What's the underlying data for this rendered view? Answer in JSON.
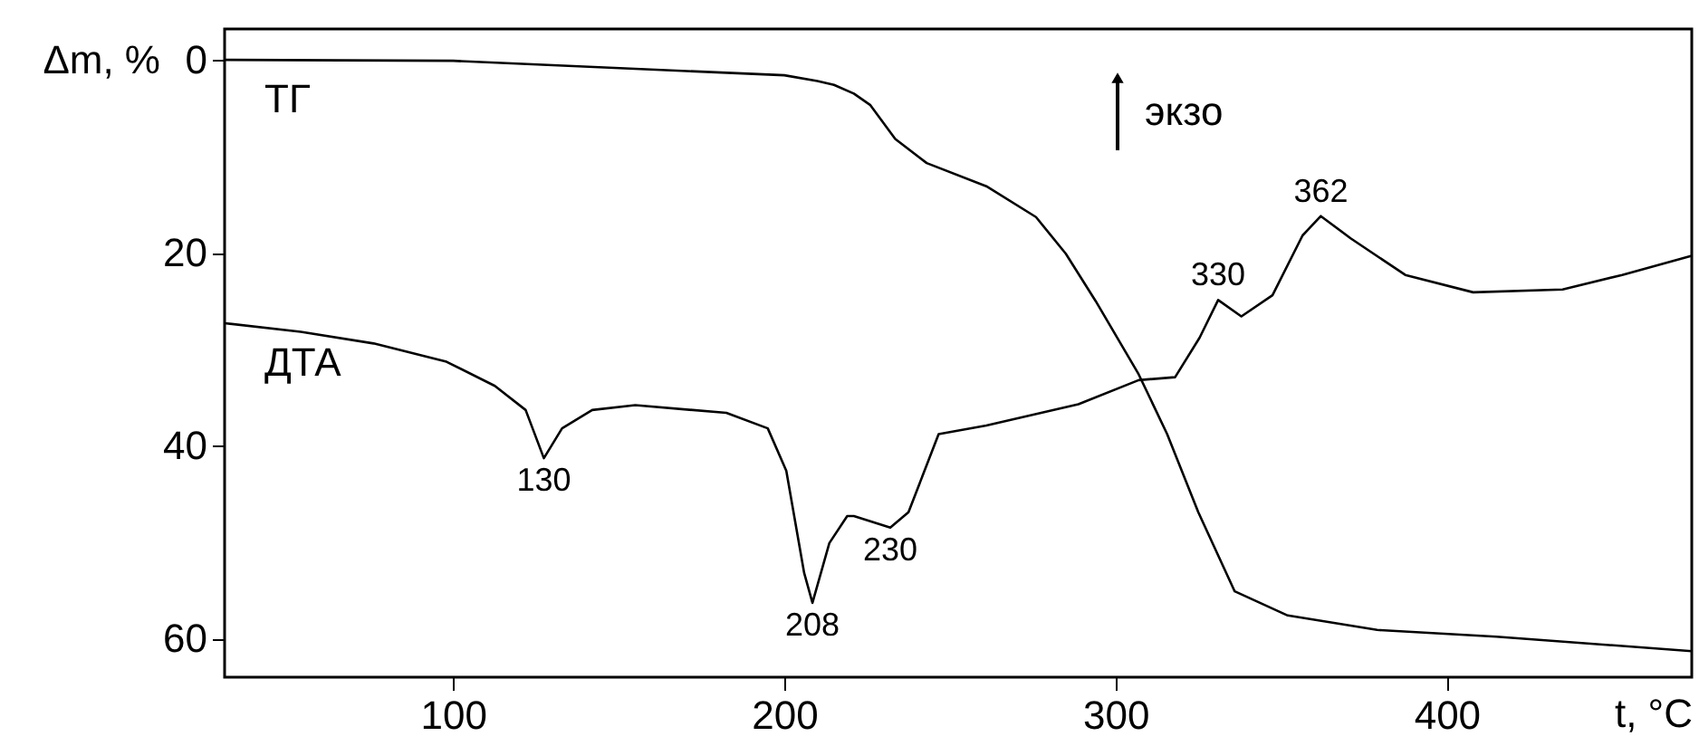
{
  "chart_data": {
    "type": "line",
    "xlabel": "t, °C",
    "ylabel": "Δm, %",
    "xlim": [
      31,
      474
    ],
    "xticks": [
      100,
      200,
      300,
      400
    ],
    "ylim": [
      64,
      -3.2
    ],
    "yticks": [
      0,
      20,
      40,
      60
    ],
    "grid": false,
    "marker": "none",
    "line_style": "solid",
    "series": [
      {
        "name": "ТГ",
        "color": "#000000",
        "x": [
          31,
          100,
          200,
          210,
          215,
          221,
          226,
          233.5,
          243,
          261,
          276,
          285,
          294,
          307,
          315.6,
          325,
          336,
          352,
          379,
          415,
          474
        ],
        "values": [
          0,
          0.1,
          1.6,
          2.2,
          2.6,
          3.5,
          4.7,
          8.2,
          10.7,
          13.1,
          16.3,
          20.1,
          25,
          32.6,
          38.8,
          46.9,
          55.1,
          57.6,
          59.1,
          59.8,
          61.3
        ]
      },
      {
        "name": "ДТА",
        "color": "#000000",
        "x": [
          31,
          54,
          76,
          98,
          112.6,
          121.9,
          127.4,
          132.9,
          142,
          155,
          182.5,
          195,
          200.6,
          206,
          208.5,
          213.6,
          219,
          221,
          232,
          237.5,
          246.6,
          261,
          288.8,
          307,
          318,
          325.4,
          331,
          338,
          347.4,
          356.5,
          362,
          371,
          387.5,
          408,
          435,
          453,
          474
        ],
        "values": [
          27.3,
          28.2,
          29.4,
          31.3,
          33.8,
          36.3,
          41.3,
          38.2,
          36.3,
          35.8,
          36.6,
          38.2,
          42.6,
          53.2,
          56.3,
          50.1,
          47.3,
          47.3,
          48.5,
          46.9,
          38.8,
          37.9,
          35.7,
          33.2,
          32.9,
          28.8,
          24.9,
          26.6,
          24.4,
          18.2,
          16.2,
          18.5,
          22.3,
          24.1,
          23.8,
          22.3,
          20.3
        ]
      }
    ],
    "annotations": [
      {
        "text": "130",
        "x": 127.4,
        "y": 41.3
      },
      {
        "text": "208",
        "x": 208.5,
        "y": 56.3
      },
      {
        "text": "230",
        "x": 232,
        "y": 48.5
      },
      {
        "text": "330",
        "x": 331,
        "y": 24.9
      },
      {
        "text": "362",
        "x": 362,
        "y": 16.2
      },
      "экзо"
    ]
  }
}
